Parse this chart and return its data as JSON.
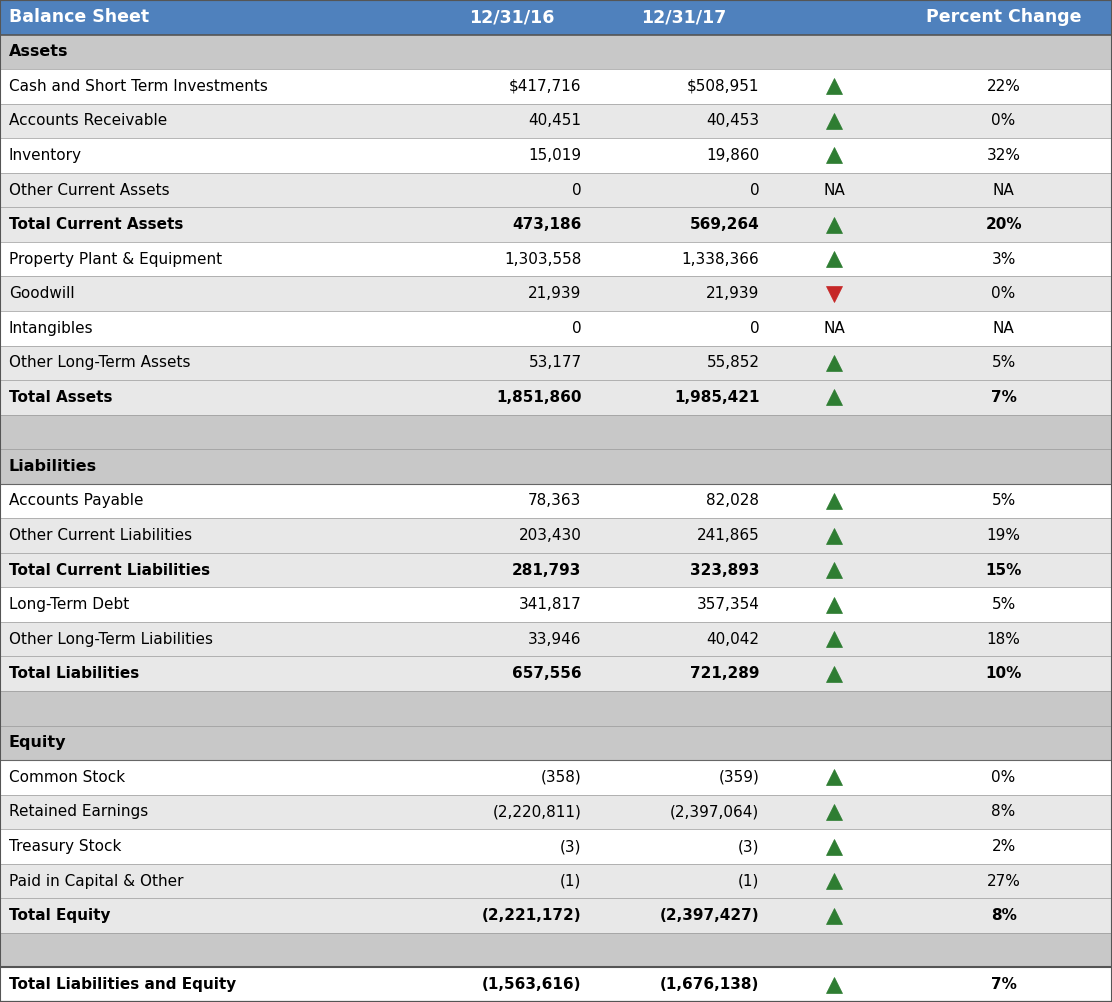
{
  "title": "Balance Sheet",
  "col1_header": "12/31/16",
  "col2_header": "12/31/17",
  "col3_header": "Percent Change",
  "header_bg": "#4F81BD",
  "header_text_color": "#FFFFFF",
  "section_bg": "#C8C8C8",
  "row_bg_white": "#FFFFFF",
  "row_bg_gray": "#E8E8E8",
  "border_color": "#999999",
  "outer_border_color": "#555555",
  "arrow_up_color": "#2E7D32",
  "arrow_down_color": "#C62828",
  "rows": [
    {
      "label": "Assets",
      "col1": "",
      "col2": "",
      "arrow": "",
      "pct": "",
      "type": "section"
    },
    {
      "label": "Cash and Short Term Investments",
      "col1": "$417,716",
      "col2": "$508,951",
      "arrow": "up",
      "pct": "22%",
      "type": "data"
    },
    {
      "label": "Accounts Receivable",
      "col1": "40,451",
      "col2": "40,453",
      "arrow": "up",
      "pct": "0%",
      "type": "data"
    },
    {
      "label": "Inventory",
      "col1": "15,019",
      "col2": "19,860",
      "arrow": "up",
      "pct": "32%",
      "type": "data"
    },
    {
      "label": "Other Current Assets",
      "col1": "0",
      "col2": "0",
      "arrow": "NA",
      "pct": "NA",
      "type": "data"
    },
    {
      "label": "Total Current Assets",
      "col1": "473,186",
      "col2": "569,264",
      "arrow": "up",
      "pct": "20%",
      "type": "subtotal"
    },
    {
      "label": "Property Plant & Equipment",
      "col1": "1,303,558",
      "col2": "1,338,366",
      "arrow": "up",
      "pct": "3%",
      "type": "data"
    },
    {
      "label": "Goodwill",
      "col1": "21,939",
      "col2": "21,939",
      "arrow": "down",
      "pct": "0%",
      "type": "data"
    },
    {
      "label": "Intangibles",
      "col1": "0",
      "col2": "0",
      "arrow": "NA",
      "pct": "NA",
      "type": "data"
    },
    {
      "label": "Other Long-Term Assets",
      "col1": "53,177",
      "col2": "55,852",
      "arrow": "up",
      "pct": "5%",
      "type": "data"
    },
    {
      "label": "Total Assets",
      "col1": "1,851,860",
      "col2": "1,985,421",
      "arrow": "up",
      "pct": "7%",
      "type": "subtotal"
    },
    {
      "label": "",
      "col1": "",
      "col2": "",
      "arrow": "",
      "pct": "",
      "type": "spacer"
    },
    {
      "label": "Liabilities",
      "col1": "",
      "col2": "",
      "arrow": "",
      "pct": "",
      "type": "section"
    },
    {
      "label": "Accounts Payable",
      "col1": "78,363",
      "col2": "82,028",
      "arrow": "up",
      "pct": "5%",
      "type": "data"
    },
    {
      "label": "Other Current Liabilities",
      "col1": "203,430",
      "col2": "241,865",
      "arrow": "up",
      "pct": "19%",
      "type": "data"
    },
    {
      "label": "Total Current Liabilities",
      "col1": "281,793",
      "col2": "323,893",
      "arrow": "up",
      "pct": "15%",
      "type": "subtotal"
    },
    {
      "label": "Long-Term Debt",
      "col1": "341,817",
      "col2": "357,354",
      "arrow": "up",
      "pct": "5%",
      "type": "data"
    },
    {
      "label": "Other Long-Term Liabilities",
      "col1": "33,946",
      "col2": "40,042",
      "arrow": "up",
      "pct": "18%",
      "type": "data"
    },
    {
      "label": "Total Liabilities",
      "col1": "657,556",
      "col2": "721,289",
      "arrow": "up",
      "pct": "10%",
      "type": "subtotal"
    },
    {
      "label": "",
      "col1": "",
      "col2": "",
      "arrow": "",
      "pct": "",
      "type": "spacer"
    },
    {
      "label": "Equity",
      "col1": "",
      "col2": "",
      "arrow": "",
      "pct": "",
      "type": "section"
    },
    {
      "label": "Common Stock",
      "col1": "(358)",
      "col2": "(359)",
      "arrow": "up",
      "pct": "0%",
      "type": "data"
    },
    {
      "label": "Retained Earnings",
      "col1": "(2,220,811)",
      "col2": "(2,397,064)",
      "arrow": "up",
      "pct": "8%",
      "type": "data"
    },
    {
      "label": "Treasury Stock",
      "col1": "(3)",
      "col2": "(3)",
      "arrow": "up",
      "pct": "2%",
      "type": "data"
    },
    {
      "label": "Paid in Capital & Other",
      "col1": "(1)",
      "col2": "(1)",
      "arrow": "up",
      "pct": "27%",
      "type": "data"
    },
    {
      "label": "Total Equity",
      "col1": "(2,221,172)",
      "col2": "(2,397,427)",
      "arrow": "up",
      "pct": "8%",
      "type": "subtotal"
    },
    {
      "label": "",
      "col1": "",
      "col2": "",
      "arrow": "",
      "pct": "",
      "type": "spacer"
    },
    {
      "label": "Total Liabilities and Equity",
      "col1": "(1,563,616)",
      "col2": "(1,676,138)",
      "arrow": "up",
      "pct": "7%",
      "type": "total"
    }
  ],
  "figsize": [
    11.12,
    10.02
  ],
  "dpi": 100
}
